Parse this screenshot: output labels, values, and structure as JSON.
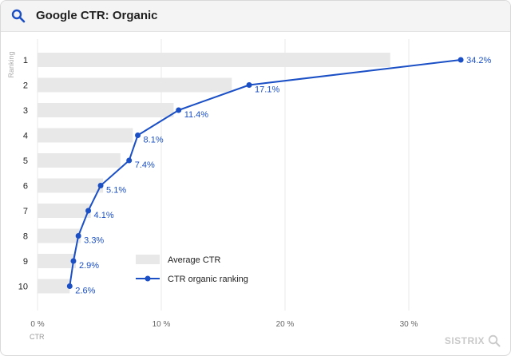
{
  "header": {
    "title": "Google CTR: Organic",
    "icon": "search-icon"
  },
  "brand": {
    "label": "SISTRIX",
    "icon": "magnifier-icon"
  },
  "colors": {
    "accent": "#1a4fc6",
    "bar": "#e8e8e8",
    "grid": "#e8e8e8"
  },
  "chart_data": {
    "type": "bar",
    "orientation": "horizontal",
    "categories": [
      "1",
      "2",
      "3",
      "4",
      "5",
      "6",
      "7",
      "8",
      "9",
      "10"
    ],
    "ylabel": "Ranking",
    "xlabel": "CTR",
    "xlim": [
      0,
      35
    ],
    "xticks": [
      0,
      10,
      20,
      30
    ],
    "xtick_labels": [
      "0 %",
      "10 %",
      "20 %",
      "30 %"
    ],
    "grid": true,
    "legend_position": "bottom-center",
    "series": [
      {
        "name": "Average CTR",
        "kind": "bar",
        "values": [
          28.5,
          15.7,
          11.0,
          7.7,
          6.7,
          5.3,
          4.3,
          3.5,
          3.1,
          2.6
        ]
      },
      {
        "name": "CTR organic ranking",
        "kind": "line",
        "values": [
          34.2,
          17.1,
          11.4,
          8.1,
          7.4,
          5.1,
          4.1,
          3.3,
          2.9,
          2.6
        ],
        "labels": [
          "34.2%",
          "17.1%",
          "11.4%",
          "8.1%",
          "7.4%",
          "5.1%",
          "4.1%",
          "3.3%",
          "2.9%",
          "2.6%"
        ]
      }
    ]
  }
}
